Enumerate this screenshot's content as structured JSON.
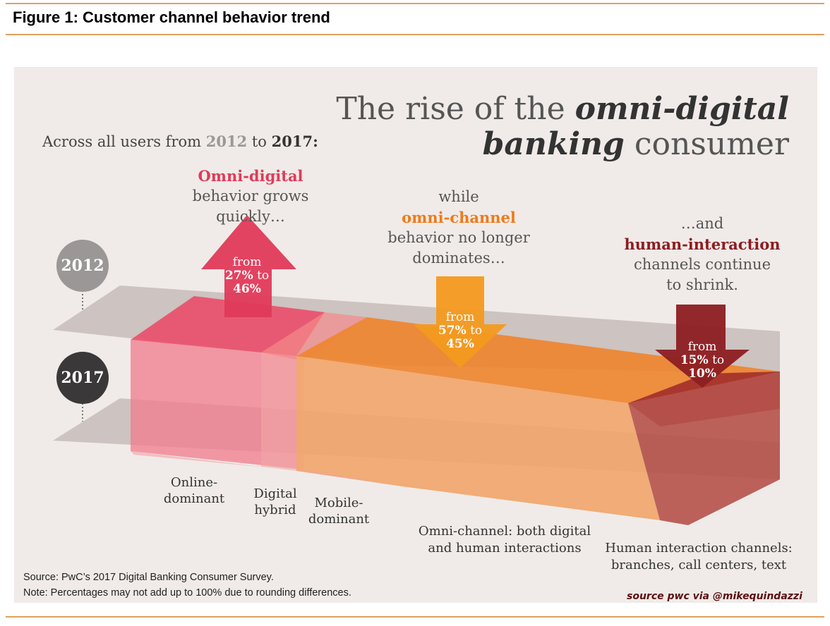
{
  "figure_title": "Figure 1: Customer channel behavior trend",
  "headline": {
    "line1_plain": "The rise of the ",
    "line1_bold": "omni-digital",
    "line2_bold": "banking",
    "line2_plain": " consumer"
  },
  "intro": {
    "prefix": "Across all users from ",
    "year_start": "2012",
    "mid": " to ",
    "year_end": "2017:"
  },
  "years": {
    "y2012": "2012",
    "y2017": "2017"
  },
  "callouts": {
    "omni_digital": {
      "title": "Omni-digital",
      "line1": "behavior grows",
      "line2": "quickly…",
      "arrow_from": "from",
      "arrow_value1": "27%",
      "arrow_to": "to",
      "arrow_value2": "46%"
    },
    "omni_channel": {
      "lead": "while",
      "title": "omni-channel",
      "line1": "behavior no longer",
      "line2": "dominates…",
      "arrow_from": "from",
      "arrow_value1": "57%",
      "arrow_to": "to",
      "arrow_value2": "45%"
    },
    "human": {
      "lead": "…and",
      "title": "human-interaction",
      "line1": "channels continue",
      "line2": "to shrink.",
      "arrow_from": "from",
      "arrow_value1": "15%",
      "arrow_to": "to",
      "arrow_value2": "10%"
    }
  },
  "segments": {
    "online": [
      "Online-",
      "dominant"
    ],
    "hybrid": [
      "Digital",
      "hybrid"
    ],
    "mobile": [
      "Mobile-",
      "dominant"
    ],
    "omni": [
      "Omni-channel: both digital",
      "and human interactions"
    ],
    "human": [
      "Human interaction channels:",
      "branches, call centers, text"
    ]
  },
  "source_lines": [
    "Source: PwC’s 2017 Digital Banking Consumer Survey.",
    "Note: Percentages may not add up to 100% due to rounding differences."
  ],
  "credit": "source pwc via @mikequindazzi",
  "colors": {
    "pink": "#e03a5a",
    "orange": "#ef8a2e",
    "maroon": "#8c1d22",
    "rule": "#e0a15b"
  }
}
